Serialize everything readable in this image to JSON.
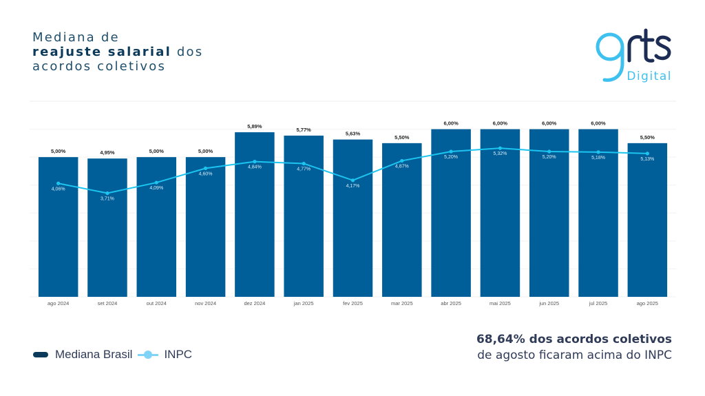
{
  "title": {
    "line1": "Mediana de",
    "line2_bold": "reajuste salarial",
    "line2_rest": " dos",
    "line3": "acordos coletivos"
  },
  "logo": {
    "main": "grts",
    "sub": "Digital"
  },
  "legend": {
    "series1": "Mediana Brasil",
    "series2": "INPC"
  },
  "note": {
    "line1": "68,64% dos acordos coletivos",
    "line2": "de agosto ficaram acima do INPC"
  },
  "colors": {
    "bar": "#005f99",
    "line": "#1cc4f0",
    "title": "#1f4e6b",
    "text": "#2f3b57"
  },
  "chart_data": {
    "type": "bar",
    "title": "Mediana de reajuste salarial dos acordos coletivos",
    "xlabel": "",
    "ylabel": "",
    "ylim": [
      0,
      7
    ],
    "grid": true,
    "legend_position": "bottom-left",
    "categories": [
      "ago 2024",
      "set 2024",
      "out 2024",
      "nov 2024",
      "dez 2024",
      "jan 2025",
      "fev 2025",
      "mar 2025",
      "abr 2025",
      "mai 2025",
      "jun 2025",
      "jul 2025",
      "ago 2025"
    ],
    "series": [
      {
        "name": "Mediana Brasil",
        "type": "bar",
        "values": [
          5.0,
          4.95,
          5.0,
          5.0,
          5.89,
          5.77,
          5.63,
          5.5,
          6.0,
          6.0,
          6.0,
          6.0,
          5.5
        ],
        "labels": [
          "5,00%",
          "4,95%",
          "5,00%",
          "5,00%",
          "5,89%",
          "5,77%",
          "5,63%",
          "5,50%",
          "6,00%",
          "6,00%",
          "6,00%",
          "6,00%",
          "5,50%"
        ]
      },
      {
        "name": "INPC",
        "type": "line",
        "values": [
          4.06,
          3.71,
          4.09,
          4.6,
          4.84,
          4.77,
          4.17,
          4.87,
          5.2,
          5.32,
          5.2,
          5.18,
          5.13
        ],
        "labels": [
          "4,06%",
          "3,71%",
          "4,09%",
          "4,60%",
          "4,84%",
          "4,77%",
          "4,17%",
          "4,87%",
          "5,20%",
          "5,32%",
          "5,20%",
          "5,18%",
          "5,13%"
        ]
      }
    ]
  }
}
